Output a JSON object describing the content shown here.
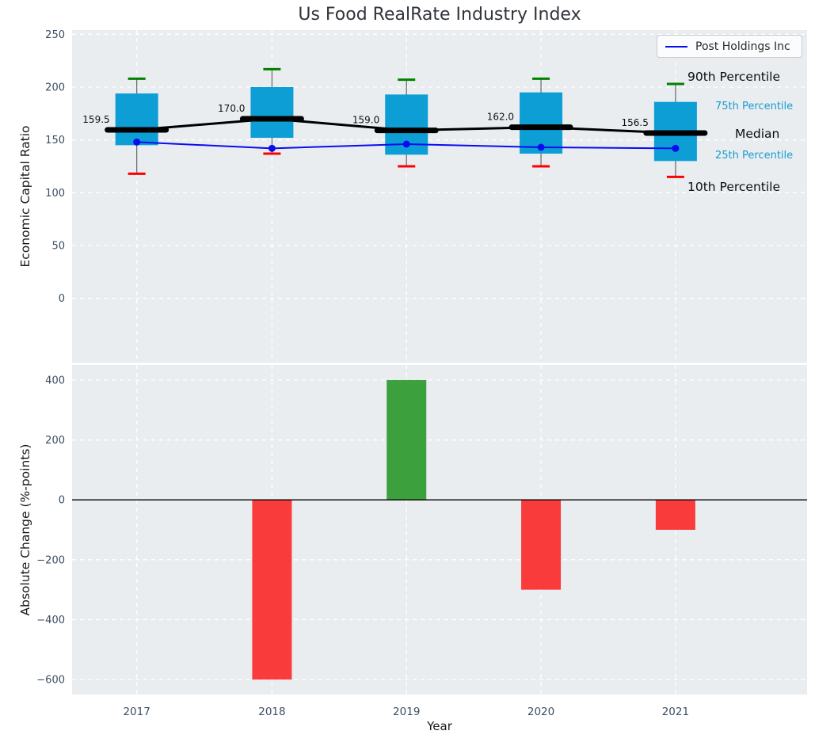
{
  "title": "Us Food RealRate Industry Index",
  "xlabel": "Year",
  "legend": {
    "label": "Post Holdings Inc"
  },
  "annotations": {
    "p90": "90th Percentile",
    "p75": "75th Percentile",
    "median": "Median",
    "p25": "25th Percentile",
    "p10": "10th Percentile"
  },
  "colors": {
    "box_fill": "#0d9ed6",
    "median_line": "#000000",
    "company_line": "#0b0bf0",
    "whisker_line": "#666666",
    "whisker_cap_top": "#008000",
    "whisker_cap_bottom": "#ff0000",
    "bar_positive": "#3ca03c",
    "bar_negative": "#fa3b3b",
    "axes_background": "#e9edf0",
    "grid": "#ffffff",
    "tick_label": "#3d4e61",
    "median_value_label": "#111111"
  },
  "chart_data": [
    {
      "type": "boxplot+line",
      "title": "Us Food RealRate Industry Index",
      "xlabel": "Year",
      "ylabel": "Economic Capital Ratio",
      "categories": [
        "2017",
        "2018",
        "2019",
        "2020",
        "2021"
      ],
      "boxes": [
        {
          "p10": 118,
          "p25": 145,
          "median": 159.5,
          "p75": 194,
          "p90": 208
        },
        {
          "p10": 137,
          "p25": 152,
          "median": 170.0,
          "p75": 200,
          "p90": 217
        },
        {
          "p10": 125,
          "p25": 136,
          "median": 159.0,
          "p75": 193,
          "p90": 207
        },
        {
          "p10": 125,
          "p25": 137,
          "median": 162.0,
          "p75": 195,
          "p90": 208
        },
        {
          "p10": 115,
          "p25": 130,
          "median": 156.5,
          "p75": 186,
          "p90": 203
        }
      ],
      "median_labels": [
        "159.5",
        "170.0",
        "159.0",
        "162.0",
        "156.5"
      ],
      "series": [
        {
          "name": "Post Holdings Inc",
          "values": [
            148,
            142,
            146,
            143,
            142
          ]
        }
      ],
      "yticks": [
        0,
        50,
        100,
        150,
        200,
        250
      ],
      "ylim": [
        -61,
        254
      ],
      "grid": true,
      "legend_position": "upper right"
    },
    {
      "type": "bar",
      "xlabel": "Year",
      "ylabel": "Absolute Change (%-points)",
      "categories": [
        "2017",
        "2018",
        "2019",
        "2020",
        "2021"
      ],
      "values": [
        null,
        -600,
        400,
        -300,
        -100
      ],
      "yticks": [
        400,
        200,
        0,
        -200,
        -400,
        -600
      ],
      "ylim": [
        -650,
        450
      ],
      "grid": true
    }
  ]
}
